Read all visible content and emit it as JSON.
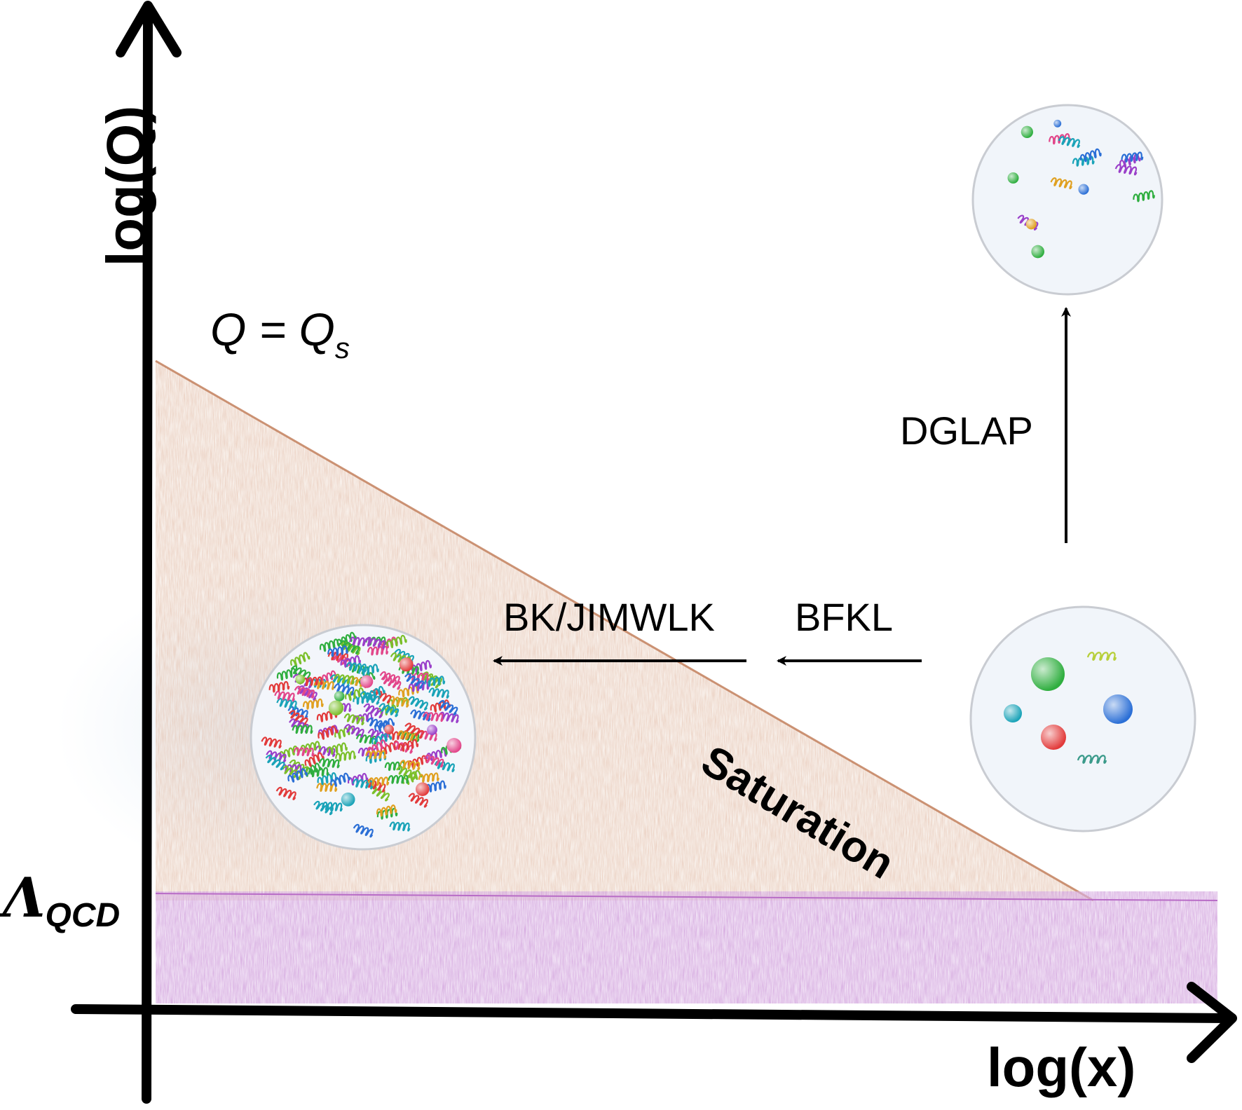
{
  "labels": {
    "y_axis": "log(Q)",
    "x_axis": "log(x)",
    "saturation_line": "Q = Q",
    "saturation_line_sub": "s",
    "lambda_symbol": "Λ",
    "lambda_sub": "QCD",
    "dglap": "DGLAP",
    "bk_jimwlk": "BK/JIMWLK",
    "bfkl": "BFKL",
    "saturation": "Saturation"
  },
  "colors": {
    "saturation_region": "#d9a48a",
    "non_perturbative_band": "#c68ad2",
    "disk_fill": "#f1f5fa",
    "axis": "#000000"
  },
  "disks": [
    {
      "name": "high-q-proton",
      "gluons": 10,
      "quarks": 6
    },
    {
      "name": "low-q-proton",
      "gluons": 2,
      "quarks": 4
    },
    {
      "name": "saturated-proton",
      "gluons": 140,
      "quarks": 10
    }
  ]
}
